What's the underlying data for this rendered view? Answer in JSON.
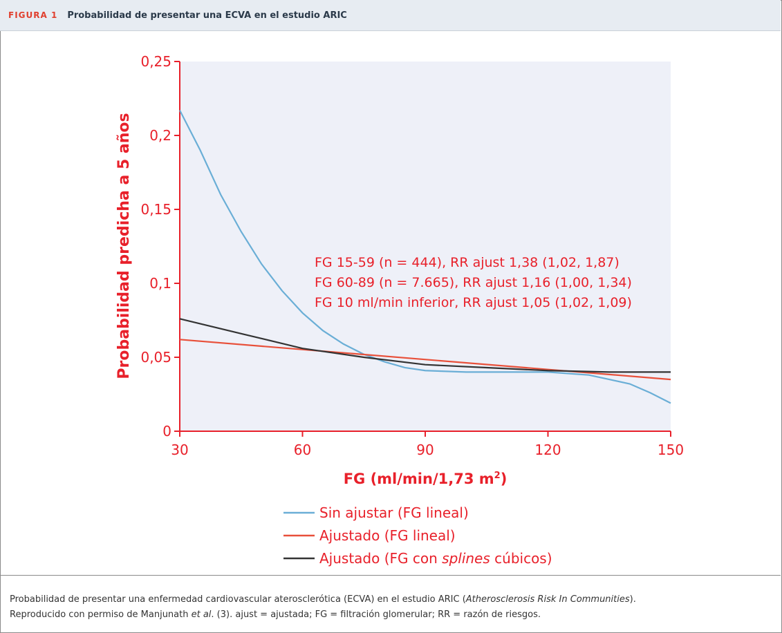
{
  "header": {
    "label": "FIGURA 1",
    "title": "Probabilidad de presentar una ECVA en el estudio ARIC"
  },
  "chart_data": {
    "type": "line",
    "y_label": "Probabilidad predicha a 5 años",
    "x_label": "FG (ml/min/1,73 m",
    "x_label_sup": "2",
    "x_label_end": ")",
    "xlim": [
      30,
      150
    ],
    "xticks": [
      30,
      60,
      90,
      120,
      150
    ],
    "ylim": [
      0,
      0.25
    ],
    "yticks": [
      0,
      {
        "value": 0.05,
        "label": "0,05"
      },
      {
        "value": 0.1,
        "label": "0,1"
      },
      {
        "value": 0.15,
        "label": "0,15"
      },
      {
        "value": 0.2,
        "label": "0,2"
      },
      {
        "value": 0.25,
        "label": "0,25"
      }
    ],
    "annotations": [
      "FG 15-59 (n = 444), RR ajust 1,38 (1,02, 1,87)",
      "FG 60-89 (n = 7.665), RR ajust 1,16 (1,00, 1,34)",
      "FG 10 ml/min inferior, RR ajust 1,05 (1,02, 1,09)"
    ],
    "legend": "bottom",
    "series": [
      {
        "name": "Sin ajustar (FG lineal)",
        "color": "#6aaed6",
        "x": [
          30,
          35,
          40,
          45,
          50,
          55,
          60,
          65,
          70,
          75,
          80,
          85,
          90,
          100,
          110,
          120,
          130,
          135,
          140,
          145,
          150
        ],
        "values": [
          0.217,
          0.19,
          0.16,
          0.135,
          0.113,
          0.095,
          0.08,
          0.068,
          0.059,
          0.052,
          0.047,
          0.043,
          0.041,
          0.04,
          0.04,
          0.04,
          0.038,
          0.035,
          0.032,
          0.026,
          0.019
        ]
      },
      {
        "name": "Ajustado (FG lineal)",
        "color": "#e8503a",
        "x": [
          30,
          150
        ],
        "values": [
          0.062,
          0.035
        ]
      },
      {
        "name": "Ajustado (FG con splines cúbicos)",
        "name_italic": "splines",
        "color": "#333333",
        "x": [
          30,
          45,
          60,
          75,
          90,
          105,
          120,
          135,
          150
        ],
        "values": [
          0.076,
          0.066,
          0.056,
          0.05,
          0.045,
          0.043,
          0.041,
          0.04,
          0.04
        ]
      }
    ]
  },
  "caption": {
    "lines": [
      [
        "Probabilidad de presentar una enfermedad cardiovascular aterosclerótica (ECVA) en el estudio ARIC (",
        "Atherosclerosis Risk In Communities",
        "). "
      ],
      [
        "Reproducido con permiso de Manjunath ",
        "et al",
        ". (3). ajust = ajustada; FG = filtración glomerular; RR = razón de riesgos."
      ]
    ]
  }
}
